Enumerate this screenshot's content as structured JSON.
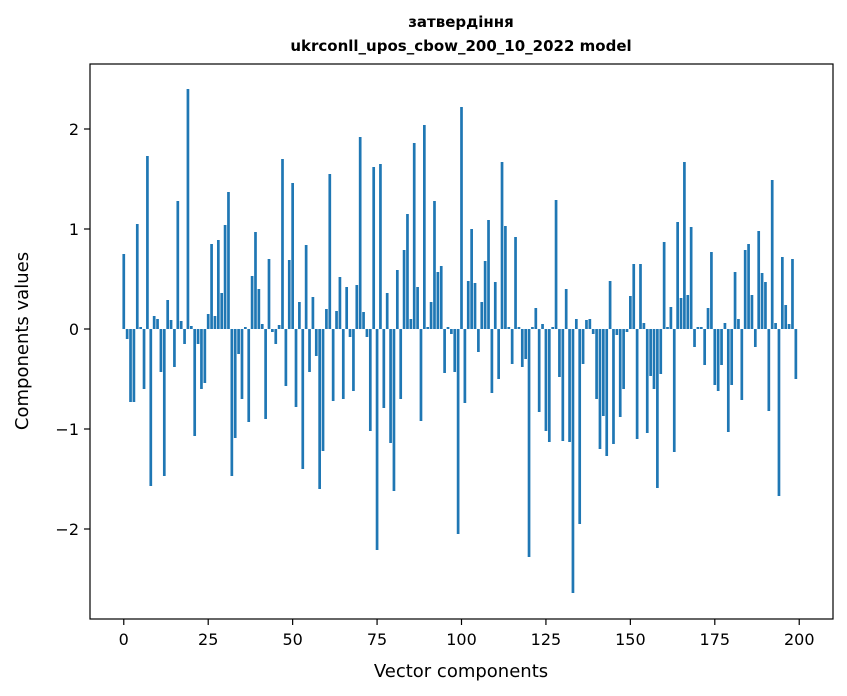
{
  "chart_data": {
    "type": "bar",
    "title": "затвердіння",
    "subtitle": "ukrconll_upos_cbow_200_10_2022 model",
    "xlabel": "Vector components",
    "ylabel": "Components values",
    "xlim": [
      -10,
      210
    ],
    "ylim": [
      -2.9,
      2.65
    ],
    "x_ticks": [
      0,
      25,
      50,
      75,
      100,
      125,
      150,
      175,
      200
    ],
    "x_tick_labels": [
      "0",
      "25",
      "50",
      "75",
      "100",
      "125",
      "150",
      "175",
      "200"
    ],
    "y_ticks": [
      -2,
      -1,
      0,
      1,
      2
    ],
    "y_tick_labels": [
      "−2",
      "−1",
      "0",
      "1",
      "2"
    ],
    "grid": false,
    "bar_color": "#1f77b4",
    "values": [
      0.75,
      -0.1,
      -0.73,
      -0.73,
      1.05,
      0.02,
      -0.6,
      1.73,
      -1.57,
      0.13,
      0.1,
      -0.43,
      -1.47,
      0.29,
      0.09,
      -0.38,
      1.28,
      0.08,
      -0.15,
      2.4,
      0.03,
      -1.07,
      -0.15,
      -0.6,
      -0.54,
      0.15,
      0.85,
      0.13,
      0.89,
      0.36,
      1.04,
      1.37,
      -1.47,
      -1.09,
      -0.25,
      -0.7,
      0.02,
      -0.93,
      0.53,
      0.97,
      0.4,
      0.05,
      -0.9,
      0.7,
      -0.03,
      -0.15,
      0.04,
      1.7,
      -0.57,
      0.69,
      1.46,
      -0.78,
      0.27,
      -1.4,
      0.84,
      -0.43,
      0.32,
      -0.27,
      -1.6,
      -1.22,
      0.2,
      1.55,
      -0.72,
      0.18,
      0.52,
      -0.7,
      0.42,
      -0.08,
      -0.62,
      0.44,
      1.92,
      0.17,
      -0.08,
      -1.02,
      1.62,
      -2.21,
      1.65,
      -0.79,
      0.36,
      -1.14,
      -1.62,
      0.59,
      -0.7,
      0.79,
      1.15,
      0.1,
      1.86,
      0.42,
      -0.92,
      2.04,
      0.02,
      0.27,
      1.28,
      0.57,
      0.63,
      -0.44,
      0.02,
      -0.05,
      -0.43,
      -2.05,
      2.22,
      -0.74,
      0.48,
      1.0,
      0.46,
      -0.23,
      0.27,
      0.68,
      1.09,
      -0.64,
      0.47,
      -0.5,
      1.67,
      1.03,
      0.02,
      -0.35,
      0.92,
      0.02,
      -0.38,
      -0.3,
      -2.28,
      0.02,
      0.21,
      -0.83,
      0.05,
      -1.02,
      -1.13,
      0.02,
      1.29,
      -0.48,
      -1.12,
      0.4,
      -1.13,
      -2.64,
      0.1,
      -1.95,
      -0.35,
      0.09,
      0.1,
      -0.05,
      -0.7,
      -1.2,
      -0.87,
      -1.27,
      0.48,
      -1.15,
      -0.06,
      -0.88,
      -0.6,
      -0.03,
      0.33,
      0.65,
      -1.1,
      0.65,
      0.06,
      -1.04,
      -0.47,
      -0.6,
      -1.59,
      -0.45,
      0.87,
      0.02,
      0.22,
      -1.23,
      1.07,
      0.31,
      1.67,
      0.34,
      1.02,
      -0.18,
      0.02,
      0.02,
      -0.36,
      0.21,
      0.77,
      -0.56,
      -0.62,
      -0.36,
      0.06,
      -1.03,
      -0.56,
      0.57,
      0.1,
      -0.71,
      0.79,
      0.85,
      0.34,
      -0.18,
      0.98,
      0.56,
      0.47,
      -0.82,
      1.49,
      0.06,
      -1.67,
      0.72,
      0.24,
      0.05,
      0.7,
      -0.5
    ]
  }
}
